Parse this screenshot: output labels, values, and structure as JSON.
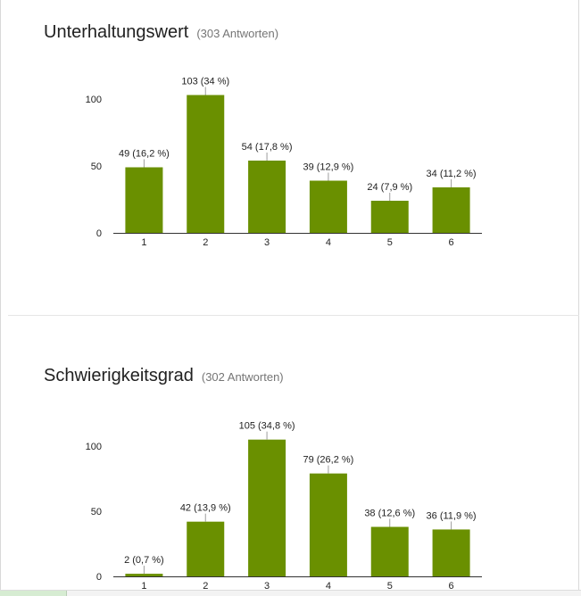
{
  "colors": {
    "bar": "#6a9000",
    "axis": "#333333",
    "leader": "#9e9e9e"
  },
  "questions": [
    {
      "title": "Unterhaltungswert",
      "responses": "(303 Antworten)"
    },
    {
      "title": "Schwierigkeitsgrad",
      "responses": "(302 Antworten)"
    }
  ],
  "chart_data": [
    {
      "type": "bar",
      "title": "Unterhaltungswert",
      "categories": [
        "1",
        "2",
        "3",
        "4",
        "5",
        "6"
      ],
      "values": [
        49,
        103,
        54,
        39,
        24,
        34
      ],
      "labels": [
        "49 (16,2 %)",
        "103 (34 %)",
        "54 (17,8 %)",
        "39 (12,9 %)",
        "24 (7,9 %)",
        "34 (11,2 %)"
      ],
      "yticks": [
        0,
        50,
        100
      ],
      "ylim": [
        0,
        100
      ],
      "grid": false,
      "legend": "none"
    },
    {
      "type": "bar",
      "title": "Schwierigkeitsgrad",
      "categories": [
        "1",
        "2",
        "3",
        "4",
        "5",
        "6"
      ],
      "values": [
        2,
        42,
        105,
        79,
        38,
        36
      ],
      "labels": [
        "2 (0,7 %)",
        "42 (13,9 %)",
        "105 (34,8 %)",
        "79 (26,2 %)",
        "38 (12,6 %)",
        "36 (11,9 %)"
      ],
      "yticks": [
        0,
        50,
        100
      ],
      "ylim": [
        0,
        100
      ],
      "grid": false,
      "legend": "none"
    }
  ]
}
